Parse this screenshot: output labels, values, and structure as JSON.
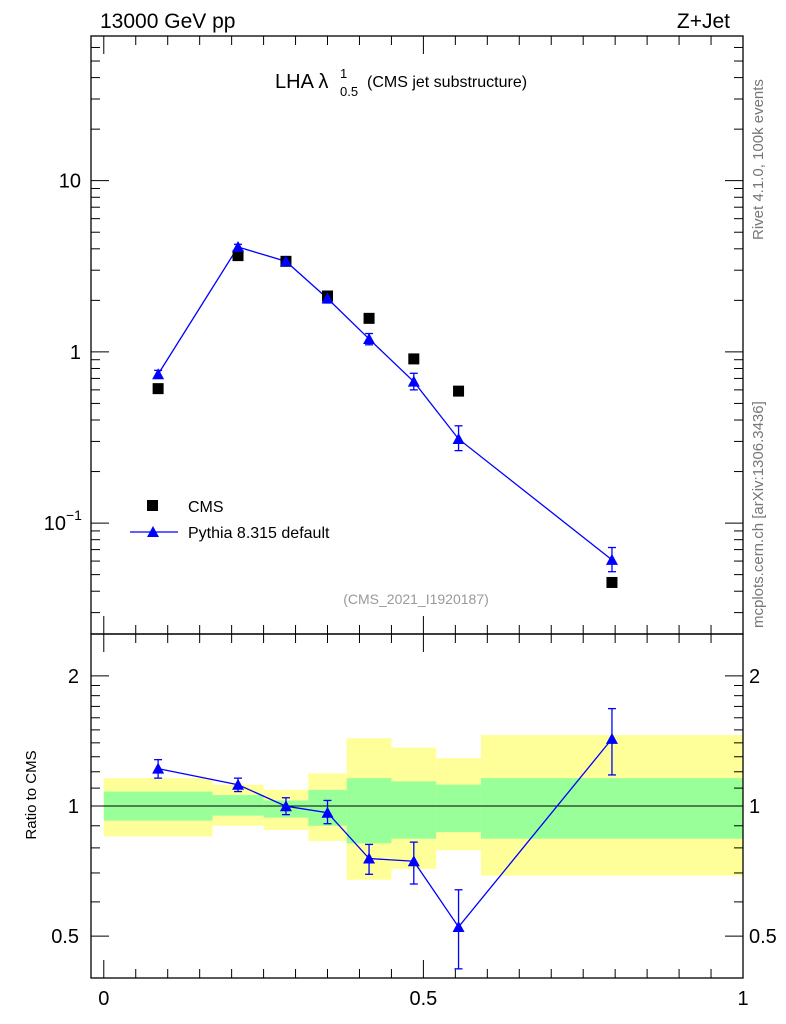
{
  "header": {
    "left_title": "13000 GeV pp",
    "right_title": "Z+Jet"
  },
  "side_text": {
    "rivet": "Rivet 4.1.0,  100k events",
    "mcplots": "mcplots.cern.ch [arXiv:1306.3436]"
  },
  "plot": {
    "title_main": "LHA λ",
    "title_sup": "1",
    "title_sub": "0.5",
    "title_note": "(CMS jet substructure)",
    "watermark": "(CMS_2021_I1920187)",
    "legend": [
      {
        "label": "CMS",
        "marker": "square"
      },
      {
        "label": "Pythia 8.315 default",
        "marker": "triangle"
      }
    ]
  },
  "colors": {
    "data": "#000000",
    "mc": "#0000ff",
    "band_inner": "#99ff99",
    "band_outer": "#ffff99"
  },
  "chart_data": [
    {
      "type": "scatter",
      "scale": "log",
      "ylim": [
        0.0225,
        70
      ],
      "xlim": [
        -0.02,
        1.0
      ],
      "ytick_labels": [
        "10",
        "1",
        "10"
      ],
      "ytick_exponent": "−1",
      "series": [
        {
          "name": "CMS",
          "x": [
            0.085,
            0.21,
            0.285,
            0.35,
            0.415,
            0.485,
            0.555,
            0.795
          ],
          "y": [
            0.61,
            3.65,
            3.38,
            2.12,
            1.57,
            0.91,
            0.59,
            0.045
          ]
        },
        {
          "name": "Pythia 8.315 default",
          "x": [
            0.085,
            0.21,
            0.285,
            0.35,
            0.415,
            0.485,
            0.555,
            0.795
          ],
          "y": [
            0.74,
            4.1,
            3.38,
            2.05,
            1.19,
            0.67,
            0.31,
            0.061
          ],
          "y_low": [
            0.7,
            3.95,
            3.28,
            1.93,
            1.1,
            0.6,
            0.265,
            0.052
          ],
          "y_high": [
            0.78,
            4.25,
            3.48,
            2.17,
            1.28,
            0.75,
            0.37,
            0.072
          ]
        }
      ]
    },
    {
      "type": "line",
      "ylabel": "Ratio to CMS",
      "ylim": [
        0.4,
        2.5
      ],
      "xlim": [
        -0.02,
        1.0
      ],
      "ytick_labels": [
        "0.5",
        "1",
        "2"
      ],
      "xtick_labels": [
        "0",
        "0.5",
        "1"
      ],
      "series": [
        {
          "name": "Pythia 8.315 default",
          "x": [
            0.085,
            0.21,
            0.285,
            0.35,
            0.415,
            0.485,
            0.555,
            0.795
          ],
          "y": [
            1.22,
            1.12,
            0.999,
            0.965,
            0.756,
            0.745,
            0.525,
            1.43
          ],
          "y_low": [
            1.16,
            1.08,
            0.955,
            0.91,
            0.695,
            0.66,
            0.42,
            1.18
          ],
          "y_high": [
            1.28,
            1.16,
            1.045,
            1.03,
            0.815,
            0.825,
            0.64,
            1.68
          ]
        }
      ],
      "bands": [
        {
          "x0": 0.0,
          "x1": 0.17,
          "inner": [
            0.925,
            1.08
          ],
          "outer": [
            0.85,
            1.16
          ]
        },
        {
          "x0": 0.17,
          "x1": 0.25,
          "inner": [
            0.95,
            1.06
          ],
          "outer": [
            0.9,
            1.12
          ]
        },
        {
          "x0": 0.25,
          "x1": 0.32,
          "inner": [
            0.94,
            1.03
          ],
          "outer": [
            0.88,
            1.09
          ]
        },
        {
          "x0": 0.32,
          "x1": 0.38,
          "inner": [
            0.9,
            1.09
          ],
          "outer": [
            0.83,
            1.19
          ]
        },
        {
          "x0": 0.38,
          "x1": 0.45,
          "inner": [
            0.82,
            1.16
          ],
          "outer": [
            0.675,
            1.435
          ]
        },
        {
          "x0": 0.45,
          "x1": 0.52,
          "inner": [
            0.84,
            1.14
          ],
          "outer": [
            0.715,
            1.365
          ]
        },
        {
          "x0": 0.52,
          "x1": 0.59,
          "inner": [
            0.87,
            1.12
          ],
          "outer": [
            0.79,
            1.29
          ]
        },
        {
          "x0": 0.59,
          "x1": 1.0,
          "inner": [
            0.84,
            1.16
          ],
          "outer": [
            0.69,
            1.46
          ]
        }
      ]
    }
  ]
}
